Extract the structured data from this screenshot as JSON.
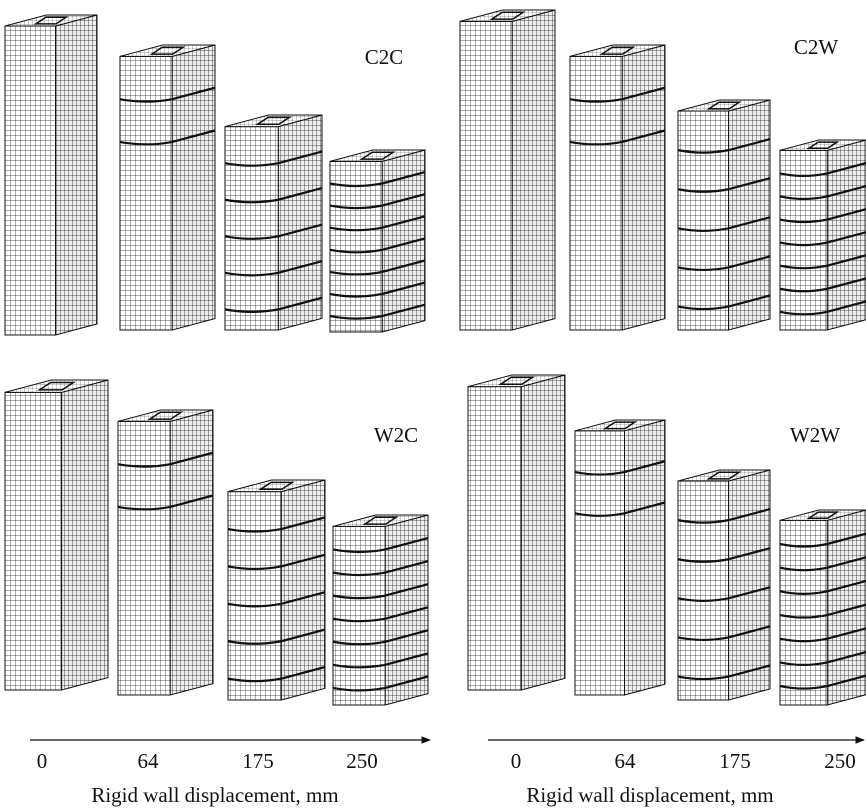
{
  "panels": [
    {
      "label": "C2C"
    },
    {
      "label": "C2W"
    },
    {
      "label": "W2C"
    },
    {
      "label": "W2W"
    }
  ],
  "axes": [
    {
      "ticks": [
        0,
        64,
        175,
        250
      ],
      "title": "Rigid wall displacement, mm"
    },
    {
      "ticks": [
        0,
        64,
        175,
        250
      ],
      "title": "Rigid wall displacement, mm"
    }
  ]
}
